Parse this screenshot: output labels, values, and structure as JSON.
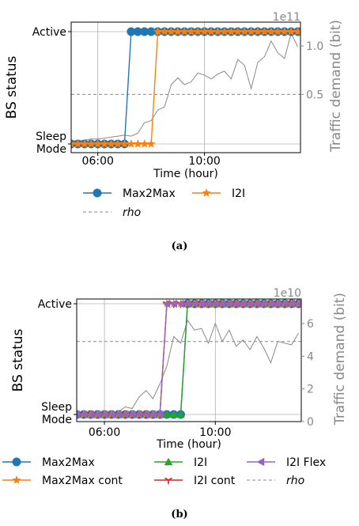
{
  "chart_data": [
    {
      "type": "line",
      "panel_label": "(a)",
      "xlabel": "Time (hour)",
      "ylabel_left": "BS status",
      "ylabel_right": "Traffic demand (bit)",
      "right_axis_exponent": "1e11",
      "x_ticks": [
        {
          "value": 6.0,
          "label": "06:00"
        },
        {
          "value": 10.0,
          "label": "10:00"
        }
      ],
      "xlim": [
        5.0,
        13.6
      ],
      "y_left_ticks": [
        {
          "value": 0,
          "label": "Sleep\nMode"
        },
        {
          "value": 1,
          "label": "Active"
        }
      ],
      "y_right_ticks": [
        {
          "value": 0.5,
          "label": "0.5"
        },
        {
          "value": 1.0,
          "label": "1.0"
        }
      ],
      "ylim_right": [
        -0.1,
        1.245
      ],
      "grid": true,
      "legend": [
        {
          "label": "Max2Max",
          "style": "solid",
          "marker": "circle",
          "color": "#1f77b4"
        },
        {
          "label": "I2I",
          "style": "solid",
          "marker": "star",
          "color": "#ff7f0e"
        },
        {
          "label": "rho",
          "style": "dashed",
          "marker": "none",
          "color": "#888888"
        }
      ],
      "rho": 0.5,
      "series": [
        {
          "name": "Max2Max",
          "color": "#1f77b4",
          "marker": "circle",
          "x": [
            5.0,
            5.25,
            5.5,
            5.75,
            6.0,
            6.25,
            6.5,
            6.75,
            7.0,
            7.25,
            7.5,
            7.75,
            8.0,
            8.25,
            8.5,
            8.75,
            9.0,
            9.25,
            9.5,
            9.75,
            10.0,
            10.25,
            10.5,
            10.75,
            11.0,
            11.25,
            11.5,
            11.75,
            12.0,
            12.25,
            12.5,
            12.75,
            13.0,
            13.25,
            13.5
          ],
          "status": [
            0,
            0,
            0,
            0,
            0,
            0,
            0,
            0,
            0,
            1,
            1,
            1,
            1,
            1,
            1,
            1,
            1,
            1,
            1,
            1,
            1,
            1,
            1,
            1,
            1,
            1,
            1,
            1,
            1,
            1,
            1,
            1,
            1,
            1,
            1
          ]
        },
        {
          "name": "I2I",
          "color": "#ff7f0e",
          "marker": "star",
          "x": [
            5.0,
            5.25,
            5.5,
            5.75,
            6.0,
            6.25,
            6.5,
            6.75,
            7.0,
            7.25,
            7.5,
            7.75,
            8.0,
            8.25,
            8.5,
            8.75,
            9.0,
            9.25,
            9.5,
            9.75,
            10.0,
            10.25,
            10.5,
            10.75,
            11.0,
            11.25,
            11.5,
            11.75,
            12.0,
            12.25,
            12.5,
            12.75,
            13.0,
            13.25,
            13.5
          ],
          "status": [
            0,
            0,
            0,
            0,
            0,
            0,
            0,
            0,
            0,
            0,
            0,
            0,
            0,
            1,
            1,
            1,
            1,
            1,
            1,
            1,
            1,
            1,
            1,
            1,
            1,
            1,
            1,
            1,
            1,
            1,
            1,
            1,
            1,
            1,
            1
          ]
        },
        {
          "name": "Traffic demand",
          "color": "#888888",
          "x": [
            5.0,
            5.25,
            5.5,
            5.75,
            6.0,
            6.25,
            6.5,
            6.75,
            7.0,
            7.25,
            7.5,
            7.75,
            8.0,
            8.25,
            8.5,
            8.75,
            9.0,
            9.25,
            9.5,
            9.75,
            10.0,
            10.25,
            10.5,
            10.75,
            11.0,
            11.25,
            11.5,
            11.75,
            12.0,
            12.25,
            12.5,
            12.75,
            13.0,
            13.25,
            13.5
          ],
          "demand": [
            0.02,
            0.02,
            0.03,
            0.04,
            0.04,
            0.05,
            0.06,
            0.07,
            0.08,
            0.07,
            0.1,
            0.21,
            0.23,
            0.34,
            0.37,
            0.6,
            0.67,
            0.6,
            0.63,
            0.72,
            0.7,
            0.66,
            0.71,
            0.74,
            0.66,
            0.86,
            0.8,
            0.56,
            0.83,
            0.89,
            1.05,
            0.93,
            0.87,
            1.13,
            0.99
          ]
        }
      ]
    },
    {
      "type": "line",
      "panel_label": "(b)",
      "xlabel": "Time (hour)",
      "ylabel_left": "BS status",
      "ylabel_right": "Traffic demand (bit)",
      "right_axis_exponent": "1e10",
      "x_ticks": [
        {
          "value": 6.0,
          "label": "06:00"
        },
        {
          "value": 10.0,
          "label": "10:00"
        }
      ],
      "xlim": [
        5.0,
        13.1
      ],
      "y_left_ticks": [
        {
          "value": 0,
          "label": "Sleep\nMode"
        },
        {
          "value": 1,
          "label": "Active"
        }
      ],
      "y_right_ticks": [
        {
          "value": 0,
          "label": "0"
        },
        {
          "value": 2,
          "label": "2"
        },
        {
          "value": 4,
          "label": "4"
        },
        {
          "value": 6,
          "label": "6"
        }
      ],
      "ylim_right": [
        0,
        7.5
      ],
      "grid": true,
      "legend": [
        {
          "label": "Max2Max",
          "style": "solid",
          "marker": "circle",
          "color": "#1f77b4"
        },
        {
          "label": "I2I",
          "style": "solid",
          "marker": "triangle",
          "color": "#2ca02c"
        },
        {
          "label": "I2I Flex",
          "style": "solid",
          "marker": "left-triangle",
          "color": "#9467bd"
        },
        {
          "label": "Max2Max cont",
          "style": "solid",
          "marker": "star",
          "color": "#ff7f0e"
        },
        {
          "label": "I2I cont",
          "style": "solid",
          "marker": "tri-down",
          "color": "#d62728"
        },
        {
          "label": "rho",
          "style": "dashed",
          "marker": "none",
          "color": "#888888"
        }
      ],
      "rho": 4.9,
      "series": [
        {
          "name": "Max2Max",
          "color": "#1f77b4",
          "marker": "circle",
          "x": [
            5.0,
            5.25,
            5.5,
            5.75,
            6.0,
            6.25,
            6.5,
            6.75,
            7.0,
            7.25,
            7.5,
            7.75,
            8.0,
            8.25,
            8.5,
            8.75,
            9.0,
            9.25,
            9.5,
            9.75,
            10.0,
            10.25,
            10.5,
            10.75,
            11.0,
            11.25,
            11.5,
            11.75,
            12.0,
            12.25,
            12.5,
            12.75,
            13.0
          ],
          "status": [
            0,
            0,
            0,
            0,
            0,
            0,
            0,
            0,
            0,
            0,
            0,
            0,
            0,
            0,
            0,
            0,
            1,
            1,
            1,
            1,
            1,
            1,
            1,
            1,
            1,
            1,
            1,
            1,
            1,
            1,
            1,
            1,
            1
          ]
        },
        {
          "name": "I2I",
          "color": "#2ca02c",
          "marker": "triangle",
          "x": [
            5.0,
            5.25,
            5.5,
            5.75,
            6.0,
            6.25,
            6.5,
            6.75,
            7.0,
            7.25,
            7.5,
            7.75,
            8.0,
            8.25,
            8.5,
            8.75,
            9.0,
            9.25,
            9.5,
            9.75,
            10.0,
            10.25,
            10.5,
            10.75,
            11.0,
            11.25,
            11.5,
            11.75,
            12.0,
            12.25,
            12.5,
            12.75,
            13.0
          ],
          "status": [
            0,
            0,
            0,
            0,
            0,
            0,
            0,
            0,
            0,
            0,
            0,
            0,
            0,
            0,
            0,
            0,
            1,
            1,
            1,
            1,
            1,
            1,
            1,
            1,
            1,
            1,
            1,
            1,
            1,
            1,
            1,
            1,
            1
          ]
        },
        {
          "name": "Max2Max cont",
          "color": "#ff7f0e",
          "marker": "star",
          "x": [
            5.0,
            5.25,
            5.5,
            5.75,
            6.0,
            6.25,
            6.5,
            6.75,
            7.0,
            7.25,
            7.5,
            7.75,
            8.0,
            8.25,
            8.5,
            8.75,
            9.0,
            9.25,
            9.5,
            9.75,
            10.0,
            10.25,
            10.5,
            10.75,
            11.0,
            11.25,
            11.5,
            11.75,
            12.0,
            12.25,
            12.5,
            12.75,
            13.0
          ],
          "status": [
            0,
            0,
            0,
            0,
            0,
            0,
            0,
            0,
            0,
            0,
            0,
            0,
            0,
            1,
            1,
            1,
            1,
            1,
            1,
            1,
            1,
            1,
            1,
            1,
            1,
            1,
            1,
            1,
            1,
            1,
            1,
            1,
            1
          ]
        },
        {
          "name": "I2I cont",
          "color": "#d62728",
          "marker": "tri-down",
          "x": [
            5.0,
            5.25,
            5.5,
            5.75,
            6.0,
            6.25,
            6.5,
            6.75,
            7.0,
            7.25,
            7.5,
            7.75,
            8.0,
            8.25,
            8.5,
            8.75,
            9.0,
            9.25,
            9.5,
            9.75,
            10.0,
            10.25,
            10.5,
            10.75,
            11.0,
            11.25,
            11.5,
            11.75,
            12.0,
            12.25,
            12.5,
            12.75,
            13.0
          ],
          "status": [
            0,
            0,
            0,
            0,
            0,
            0,
            0,
            0,
            0,
            0,
            0,
            0,
            0,
            1,
            1,
            1,
            1,
            1,
            1,
            1,
            1,
            1,
            1,
            1,
            1,
            1,
            1,
            1,
            1,
            1,
            1,
            1,
            1
          ]
        },
        {
          "name": "I2I Flex",
          "color": "#9467bd",
          "marker": "left-triangle",
          "x": [
            5.0,
            5.25,
            5.5,
            5.75,
            6.0,
            6.25,
            6.5,
            6.75,
            7.0,
            7.25,
            7.5,
            7.75,
            8.0,
            8.25,
            8.5,
            8.75,
            9.0,
            9.25,
            9.5,
            9.75,
            10.0,
            10.25,
            10.5,
            10.75,
            11.0,
            11.25,
            11.5,
            11.75,
            12.0,
            12.25,
            12.5,
            12.75,
            13.0
          ],
          "status": [
            0,
            0,
            0,
            0,
            0,
            0,
            0,
            0,
            0,
            0,
            0,
            0,
            0,
            1,
            1,
            1,
            1,
            1,
            1,
            1,
            1,
            1,
            1,
            1,
            1,
            1,
            1,
            1,
            1,
            1,
            1,
            1,
            1
          ]
        },
        {
          "name": "Traffic demand",
          "color": "#888888",
          "x": [
            5.0,
            5.25,
            5.5,
            5.75,
            6.0,
            6.25,
            6.5,
            6.75,
            7.0,
            7.25,
            7.5,
            7.75,
            8.0,
            8.25,
            8.5,
            8.75,
            9.0,
            9.25,
            9.5,
            9.75,
            10.0,
            10.25,
            10.5,
            10.75,
            11.0,
            11.25,
            11.5,
            11.75,
            12.0,
            12.25,
            12.5,
            12.75,
            13.0
          ],
          "demand": [
            0.7,
            0.3,
            0.3,
            0.4,
            0.3,
            0.5,
            0.6,
            0.9,
            0.8,
            1.5,
            1.9,
            1.4,
            2.3,
            3.4,
            5.2,
            4.8,
            6.2,
            5.6,
            5.7,
            4.8,
            6.0,
            4.9,
            5.6,
            4.6,
            5.0,
            4.4,
            5.2,
            4.5,
            3.6,
            4.9,
            4.8,
            4.7,
            5.4
          ]
        }
      ]
    }
  ]
}
